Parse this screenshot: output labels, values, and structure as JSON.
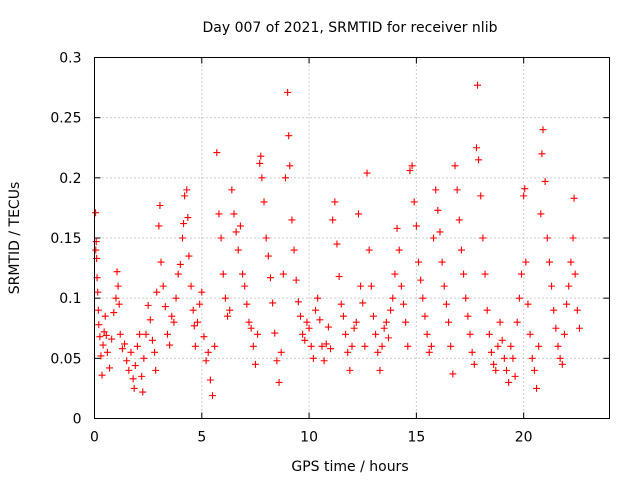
{
  "chart_data": {
    "type": "scatter",
    "title": "Day 007 of 2021, SRMTID for receiver nlib",
    "xlabel": "GPS time / hours",
    "ylabel": "SRMTID / TECUs",
    "xlim": [
      0,
      24
    ],
    "ylim": [
      0,
      0.3
    ],
    "xticks": [
      0,
      5,
      10,
      15,
      20
    ],
    "xtick_labels": [
      "0",
      "5",
      "10",
      "15",
      "20"
    ],
    "yticks": [
      0,
      0.05,
      0.1,
      0.15,
      0.2,
      0.25,
      0.3
    ],
    "ytick_labels": [
      "0",
      "0.05",
      "0.1",
      "0.15",
      "0.2",
      "0.25",
      "0.3"
    ],
    "grid": true,
    "marker": "plus",
    "color": "#ff0000",
    "series": [
      {
        "name": "SRMTID",
        "points": [
          [
            0.05,
            0.171
          ],
          [
            0.06,
            0.14
          ],
          [
            0.08,
            0.147
          ],
          [
            0.1,
            0.133
          ],
          [
            0.12,
            0.117
          ],
          [
            0.15,
            0.105
          ],
          [
            0.18,
            0.09
          ],
          [
            0.2,
            0.078
          ],
          [
            0.25,
            0.068
          ],
          [
            0.3,
            0.052
          ],
          [
            0.35,
            0.036
          ],
          [
            0.4,
            0.061
          ],
          [
            0.45,
            0.072
          ],
          [
            0.5,
            0.085
          ],
          [
            0.55,
            0.069
          ],
          [
            0.6,
            0.055
          ],
          [
            0.7,
            0.042
          ],
          [
            0.8,
            0.066
          ],
          [
            0.9,
            0.088
          ],
          [
            1.0,
            0.1
          ],
          [
            1.05,
            0.122
          ],
          [
            1.1,
            0.11
          ],
          [
            1.15,
            0.095
          ],
          [
            1.2,
            0.07
          ],
          [
            1.3,
            0.058
          ],
          [
            1.4,
            0.062
          ],
          [
            1.5,
            0.048
          ],
          [
            1.6,
            0.04
          ],
          [
            1.7,
            0.055
          ],
          [
            1.8,
            0.033
          ],
          [
            1.85,
            0.025
          ],
          [
            1.9,
            0.044
          ],
          [
            2.0,
            0.06
          ],
          [
            2.1,
            0.07
          ],
          [
            2.2,
            0.035
          ],
          [
            2.25,
            0.022
          ],
          [
            2.3,
            0.05
          ],
          [
            2.4,
            0.07
          ],
          [
            2.5,
            0.094
          ],
          [
            2.6,
            0.082
          ],
          [
            2.7,
            0.065
          ],
          [
            2.8,
            0.055
          ],
          [
            2.85,
            0.04
          ],
          [
            2.9,
            0.105
          ],
          [
            3.0,
            0.16
          ],
          [
            3.05,
            0.177
          ],
          [
            3.1,
            0.13
          ],
          [
            3.2,
            0.11
          ],
          [
            3.3,
            0.093
          ],
          [
            3.4,
            0.07
          ],
          [
            3.5,
            0.061
          ],
          [
            3.6,
            0.085
          ],
          [
            3.7,
            0.08
          ],
          [
            3.8,
            0.1
          ],
          [
            3.9,
            0.12
          ],
          [
            4.0,
            0.128
          ],
          [
            4.1,
            0.15
          ],
          [
            4.15,
            0.162
          ],
          [
            4.2,
            0.185
          ],
          [
            4.3,
            0.19
          ],
          [
            4.35,
            0.167
          ],
          [
            4.4,
            0.135
          ],
          [
            4.5,
            0.11
          ],
          [
            4.6,
            0.09
          ],
          [
            4.65,
            0.077
          ],
          [
            4.7,
            0.06
          ],
          [
            4.8,
            0.08
          ],
          [
            4.9,
            0.095
          ],
          [
            5.0,
            0.105
          ],
          [
            5.1,
            0.068
          ],
          [
            5.2,
            0.048
          ],
          [
            5.3,
            0.055
          ],
          [
            5.4,
            0.032
          ],
          [
            5.5,
            0.019
          ],
          [
            5.6,
            0.06
          ],
          [
            5.7,
            0.221
          ],
          [
            5.8,
            0.17
          ],
          [
            5.9,
            0.15
          ],
          [
            6.0,
            0.12
          ],
          [
            6.1,
            0.1
          ],
          [
            6.2,
            0.085
          ],
          [
            6.3,
            0.09
          ],
          [
            6.4,
            0.19
          ],
          [
            6.5,
            0.17
          ],
          [
            6.6,
            0.155
          ],
          [
            6.7,
            0.14
          ],
          [
            6.8,
            0.16
          ],
          [
            6.9,
            0.12
          ],
          [
            7.0,
            0.11
          ],
          [
            7.1,
            0.095
          ],
          [
            7.2,
            0.08
          ],
          [
            7.3,
            0.075
          ],
          [
            7.4,
            0.06
          ],
          [
            7.5,
            0.045
          ],
          [
            7.6,
            0.07
          ],
          [
            7.7,
            0.212
          ],
          [
            7.75,
            0.218
          ],
          [
            7.8,
            0.2
          ],
          [
            7.9,
            0.18
          ],
          [
            8.0,
            0.15
          ],
          [
            8.1,
            0.135
          ],
          [
            8.2,
            0.117
          ],
          [
            8.3,
            0.096
          ],
          [
            8.4,
            0.071
          ],
          [
            8.5,
            0.048
          ],
          [
            8.6,
            0.03
          ],
          [
            8.7,
            0.055
          ],
          [
            8.8,
            0.12
          ],
          [
            8.9,
            0.2
          ],
          [
            9.0,
            0.271
          ],
          [
            9.05,
            0.235
          ],
          [
            9.1,
            0.21
          ],
          [
            9.2,
            0.165
          ],
          [
            9.3,
            0.14
          ],
          [
            9.4,
            0.115
          ],
          [
            9.5,
            0.097
          ],
          [
            9.6,
            0.085
          ],
          [
            9.7,
            0.07
          ],
          [
            9.8,
            0.065
          ],
          [
            9.9,
            0.08
          ],
          [
            10.0,
            0.075
          ],
          [
            10.1,
            0.06
          ],
          [
            10.2,
            0.05
          ],
          [
            10.3,
            0.09
          ],
          [
            10.4,
            0.1
          ],
          [
            10.5,
            0.082
          ],
          [
            10.6,
            0.06
          ],
          [
            10.7,
            0.048
          ],
          [
            10.8,
            0.062
          ],
          [
            10.9,
            0.076
          ],
          [
            11.0,
            0.058
          ],
          [
            11.1,
            0.165
          ],
          [
            11.2,
            0.18
          ],
          [
            11.3,
            0.145
          ],
          [
            11.4,
            0.118
          ],
          [
            11.5,
            0.095
          ],
          [
            11.6,
            0.085
          ],
          [
            11.7,
            0.07
          ],
          [
            11.8,
            0.055
          ],
          [
            11.9,
            0.04
          ],
          [
            12.0,
            0.06
          ],
          [
            12.1,
            0.075
          ],
          [
            12.2,
            0.08
          ],
          [
            12.3,
            0.17
          ],
          [
            12.4,
            0.11
          ],
          [
            12.5,
            0.096
          ],
          [
            12.6,
            0.06
          ],
          [
            12.7,
            0.204
          ],
          [
            12.8,
            0.14
          ],
          [
            12.9,
            0.11
          ],
          [
            13.0,
            0.085
          ],
          [
            13.1,
            0.07
          ],
          [
            13.2,
            0.055
          ],
          [
            13.3,
            0.04
          ],
          [
            13.4,
            0.06
          ],
          [
            13.5,
            0.075
          ],
          [
            13.6,
            0.08
          ],
          [
            13.7,
            0.067
          ],
          [
            13.8,
            0.09
          ],
          [
            13.9,
            0.1
          ],
          [
            14.0,
            0.12
          ],
          [
            14.1,
            0.158
          ],
          [
            14.2,
            0.14
          ],
          [
            14.3,
            0.11
          ],
          [
            14.4,
            0.095
          ],
          [
            14.5,
            0.08
          ],
          [
            14.6,
            0.06
          ],
          [
            14.7,
            0.206
          ],
          [
            14.8,
            0.21
          ],
          [
            14.9,
            0.18
          ],
          [
            15.0,
            0.16
          ],
          [
            15.1,
            0.13
          ],
          [
            15.2,
            0.115
          ],
          [
            15.3,
            0.1
          ],
          [
            15.4,
            0.085
          ],
          [
            15.5,
            0.07
          ],
          [
            15.6,
            0.055
          ],
          [
            15.7,
            0.06
          ],
          [
            15.8,
            0.15
          ],
          [
            15.9,
            0.19
          ],
          [
            16.0,
            0.173
          ],
          [
            16.1,
            0.155
          ],
          [
            16.2,
            0.13
          ],
          [
            16.3,
            0.11
          ],
          [
            16.4,
            0.095
          ],
          [
            16.5,
            0.08
          ],
          [
            16.6,
            0.06
          ],
          [
            16.7,
            0.037
          ],
          [
            16.8,
            0.21
          ],
          [
            16.9,
            0.19
          ],
          [
            17.0,
            0.165
          ],
          [
            17.1,
            0.14
          ],
          [
            17.2,
            0.12
          ],
          [
            17.3,
            0.1
          ],
          [
            17.4,
            0.085
          ],
          [
            17.5,
            0.07
          ],
          [
            17.6,
            0.055
          ],
          [
            17.7,
            0.045
          ],
          [
            17.8,
            0.225
          ],
          [
            17.85,
            0.277
          ],
          [
            17.9,
            0.215
          ],
          [
            18.0,
            0.185
          ],
          [
            18.1,
            0.15
          ],
          [
            18.2,
            0.12
          ],
          [
            18.3,
            0.09
          ],
          [
            18.4,
            0.07
          ],
          [
            18.5,
            0.055
          ],
          [
            18.6,
            0.045
          ],
          [
            18.7,
            0.04
          ],
          [
            18.8,
            0.06
          ],
          [
            18.9,
            0.08
          ],
          [
            19.0,
            0.065
          ],
          [
            19.1,
            0.05
          ],
          [
            19.2,
            0.04
          ],
          [
            19.3,
            0.03
          ],
          [
            19.4,
            0.06
          ],
          [
            19.5,
            0.05
          ],
          [
            19.6,
            0.035
          ],
          [
            19.7,
            0.08
          ],
          [
            19.8,
            0.1
          ],
          [
            19.9,
            0.12
          ],
          [
            20.0,
            0.185
          ],
          [
            20.05,
            0.191
          ],
          [
            20.1,
            0.13
          ],
          [
            20.2,
            0.095
          ],
          [
            20.3,
            0.07
          ],
          [
            20.4,
            0.05
          ],
          [
            20.5,
            0.04
          ],
          [
            20.6,
            0.025
          ],
          [
            20.7,
            0.06
          ],
          [
            20.8,
            0.17
          ],
          [
            20.85,
            0.22
          ],
          [
            20.9,
            0.24
          ],
          [
            21.0,
            0.197
          ],
          [
            21.1,
            0.15
          ],
          [
            21.2,
            0.13
          ],
          [
            21.3,
            0.11
          ],
          [
            21.4,
            0.09
          ],
          [
            21.5,
            0.075
          ],
          [
            21.6,
            0.06
          ],
          [
            21.7,
            0.05
          ],
          [
            21.8,
            0.045
          ],
          [
            21.9,
            0.07
          ],
          [
            22.0,
            0.095
          ],
          [
            22.1,
            0.11
          ],
          [
            22.2,
            0.13
          ],
          [
            22.3,
            0.15
          ],
          [
            22.35,
            0.183
          ],
          [
            22.4,
            0.12
          ],
          [
            22.5,
            0.09
          ],
          [
            22.6,
            0.075
          ]
        ]
      }
    ]
  }
}
